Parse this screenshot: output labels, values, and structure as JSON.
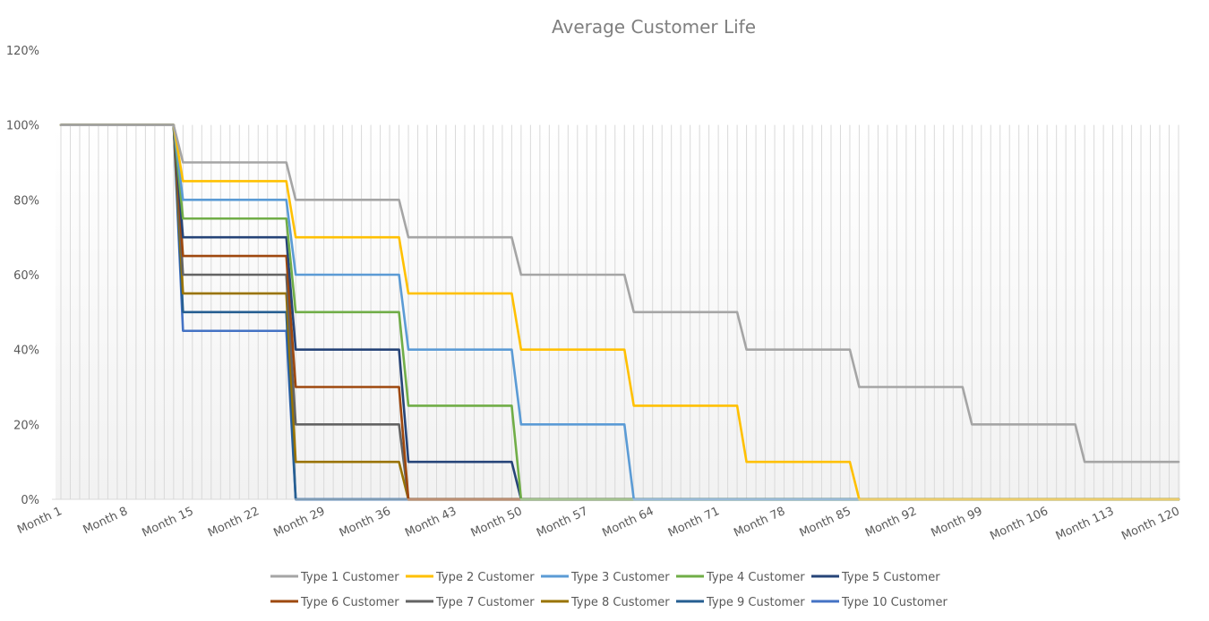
{
  "chart_data": {
    "type": "line",
    "title": "Average Customer Life",
    "x_start": 1,
    "x_end": 120,
    "x_tick_labels": [
      "Month 1",
      "Month 8",
      "Month 15",
      "Month 22",
      "Month 29",
      "Month 36",
      "Month 43",
      "Month 50",
      "Month 57",
      "Month 64",
      "Month 71",
      "Month 78",
      "Month 85",
      "Month 92",
      "Month 99",
      "Month 106",
      "Month 113",
      "Month 120"
    ],
    "x_tick_values": [
      1,
      8,
      15,
      22,
      29,
      36,
      43,
      50,
      57,
      64,
      71,
      78,
      85,
      92,
      99,
      106,
      113,
      120
    ],
    "y_tick_labels": [
      "0%",
      "20%",
      "40%",
      "60%",
      "80%",
      "100%",
      "120%"
    ],
    "y_tick_values": [
      0,
      20,
      40,
      60,
      80,
      100,
      120
    ],
    "ylim": [
      0,
      120
    ],
    "grid": "vertical",
    "legend_position": "bottom",
    "series": [
      {
        "name": "Type 1 Customer",
        "color": "#a5a5a5",
        "steps": [
          [
            1,
            100
          ],
          [
            13,
            100
          ],
          [
            14,
            90
          ],
          [
            25,
            90
          ],
          [
            26,
            80
          ],
          [
            37,
            80
          ],
          [
            38,
            70
          ],
          [
            49,
            70
          ],
          [
            50,
            60
          ],
          [
            61,
            60
          ],
          [
            62,
            50
          ],
          [
            73,
            50
          ],
          [
            74,
            40
          ],
          [
            85,
            40
          ],
          [
            86,
            30
          ],
          [
            97,
            30
          ],
          [
            98,
            20
          ],
          [
            109,
            20
          ],
          [
            110,
            10
          ],
          [
            120,
            10
          ]
        ]
      },
      {
        "name": "Type 2 Customer",
        "color": "#ffc000",
        "steps": [
          [
            1,
            100
          ],
          [
            13,
            100
          ],
          [
            14,
            85
          ],
          [
            25,
            85
          ],
          [
            26,
            70
          ],
          [
            37,
            70
          ],
          [
            38,
            55
          ],
          [
            49,
            55
          ],
          [
            50,
            40
          ],
          [
            61,
            40
          ],
          [
            62,
            25
          ],
          [
            73,
            25
          ],
          [
            74,
            10
          ],
          [
            85,
            10
          ],
          [
            86,
            0
          ],
          [
            120,
            0
          ]
        ]
      },
      {
        "name": "Type 3 Customer",
        "color": "#5b9bd5",
        "steps": [
          [
            1,
            100
          ],
          [
            13,
            100
          ],
          [
            14,
            80
          ],
          [
            25,
            80
          ],
          [
            26,
            60
          ],
          [
            37,
            60
          ],
          [
            38,
            40
          ],
          [
            49,
            40
          ],
          [
            50,
            20
          ],
          [
            61,
            20
          ],
          [
            62,
            0
          ],
          [
            120,
            0
          ]
        ]
      },
      {
        "name": "Type 4 Customer",
        "color": "#70ad47",
        "steps": [
          [
            1,
            100
          ],
          [
            13,
            100
          ],
          [
            14,
            75
          ],
          [
            25,
            75
          ],
          [
            26,
            50
          ],
          [
            37,
            50
          ],
          [
            38,
            25
          ],
          [
            49,
            25
          ],
          [
            50,
            0
          ],
          [
            120,
            0
          ]
        ]
      },
      {
        "name": "Type 5 Customer",
        "color": "#264478",
        "steps": [
          [
            1,
            100
          ],
          [
            13,
            100
          ],
          [
            14,
            70
          ],
          [
            25,
            70
          ],
          [
            26,
            40
          ],
          [
            37,
            40
          ],
          [
            38,
            10
          ],
          [
            49,
            10
          ],
          [
            50,
            0
          ],
          [
            120,
            0
          ]
        ]
      },
      {
        "name": "Type 6 Customer",
        "color": "#9e480e",
        "steps": [
          [
            1,
            100
          ],
          [
            13,
            100
          ],
          [
            14,
            65
          ],
          [
            25,
            65
          ],
          [
            26,
            30
          ],
          [
            37,
            30
          ],
          [
            38,
            0
          ],
          [
            120,
            0
          ]
        ]
      },
      {
        "name": "Type 7 Customer",
        "color": "#636363",
        "steps": [
          [
            1,
            100
          ],
          [
            13,
            100
          ],
          [
            14,
            60
          ],
          [
            25,
            60
          ],
          [
            26,
            20
          ],
          [
            37,
            20
          ],
          [
            38,
            0
          ],
          [
            120,
            0
          ]
        ]
      },
      {
        "name": "Type 8 Customer",
        "color": "#997300",
        "steps": [
          [
            1,
            100
          ],
          [
            13,
            100
          ],
          [
            14,
            55
          ],
          [
            25,
            55
          ],
          [
            26,
            10
          ],
          [
            37,
            10
          ],
          [
            38,
            0
          ],
          [
            120,
            0
          ]
        ]
      },
      {
        "name": "Type 9 Customer",
        "color": "#255e91",
        "steps": [
          [
            1,
            100
          ],
          [
            13,
            100
          ],
          [
            14,
            50
          ],
          [
            25,
            50
          ],
          [
            26,
            0
          ],
          [
            120,
            0
          ]
        ]
      },
      {
        "name": "Type 10 Customer",
        "color": "#4472c4",
        "steps": [
          [
            1,
            100
          ],
          [
            13,
            100
          ],
          [
            14,
            45
          ],
          [
            25,
            45
          ],
          [
            26,
            0
          ],
          [
            120,
            0
          ]
        ]
      }
    ]
  }
}
